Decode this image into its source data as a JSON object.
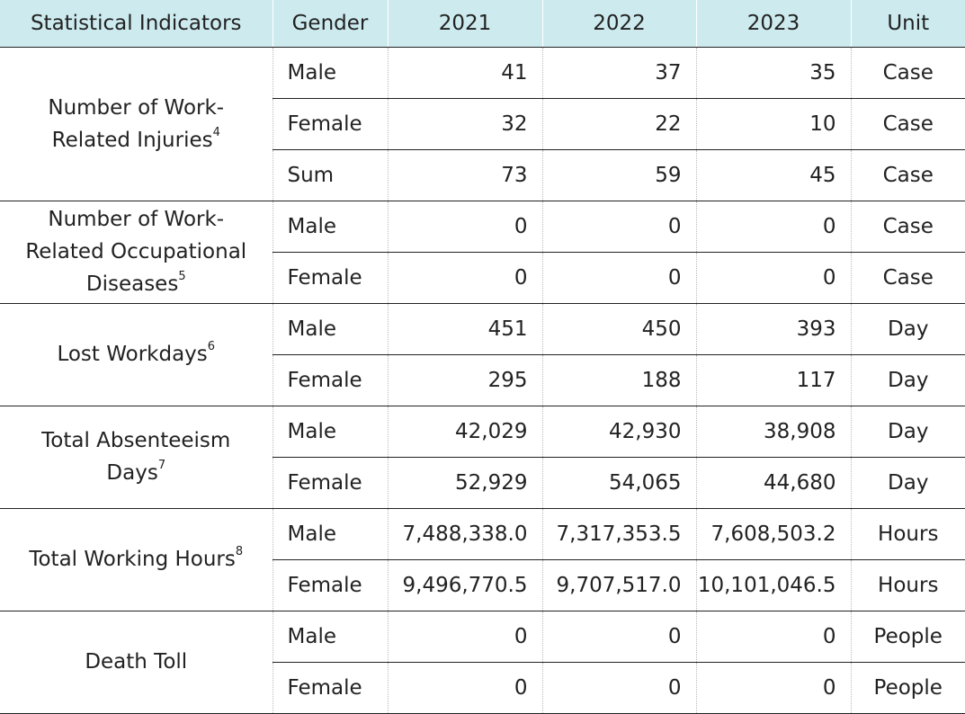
{
  "header": {
    "indicator": "Statistical Indicators",
    "gender": "Gender",
    "y2021": "2021",
    "y2022": "2022",
    "y2023": "2023",
    "unit": "Unit"
  },
  "groups": [
    {
      "label": "Number of Work-Related Injuries",
      "note": "4",
      "rows": [
        {
          "gender": "Male",
          "v2021": "41",
          "v2022": "37",
          "v2023": "35",
          "unit": "Case"
        },
        {
          "gender": "Female",
          "v2021": "32",
          "v2022": "22",
          "v2023": "10",
          "unit": "Case"
        },
        {
          "gender": "Sum",
          "v2021": "73",
          "v2022": "59",
          "v2023": "45",
          "unit": "Case"
        }
      ]
    },
    {
      "label": "Number of Work-Related Occupational Diseases",
      "note": "5",
      "rows": [
        {
          "gender": "Male",
          "v2021": "0",
          "v2022": "0",
          "v2023": "0",
          "unit": "Case"
        },
        {
          "gender": "Female",
          "v2021": "0",
          "v2022": "0",
          "v2023": "0",
          "unit": "Case"
        }
      ]
    },
    {
      "label": "Lost Workdays",
      "note": "6",
      "rows": [
        {
          "gender": "Male",
          "v2021": "451",
          "v2022": "450",
          "v2023": "393",
          "unit": "Day"
        },
        {
          "gender": "Female",
          "v2021": "295",
          "v2022": "188",
          "v2023": "117",
          "unit": "Day"
        }
      ]
    },
    {
      "label": "Total Absenteeism Days",
      "note": "7",
      "rows": [
        {
          "gender": "Male",
          "v2021": "42,029",
          "v2022": "42,930",
          "v2023": "38,908",
          "unit": "Day"
        },
        {
          "gender": "Female",
          "v2021": "52,929",
          "v2022": "54,065",
          "v2023": "44,680",
          "unit": "Day"
        }
      ]
    },
    {
      "label": "Total Working Hours",
      "note": "8",
      "rows": [
        {
          "gender": "Male",
          "v2021": "7,488,338.0",
          "v2022": "7,317,353.5",
          "v2023": "7,608,503.2",
          "unit": "Hours"
        },
        {
          "gender": "Female",
          "v2021": "9,496,770.5",
          "v2022": "9,707,517.0",
          "v2023": "10,101,046.5",
          "unit": "Hours"
        }
      ]
    },
    {
      "label": "Death Toll",
      "note": "",
      "rows": [
        {
          "gender": "Male",
          "v2021": "0",
          "v2022": "0",
          "v2023": "0",
          "unit": "People"
        },
        {
          "gender": "Female",
          "v2021": "0",
          "v2022": "0",
          "v2023": "0",
          "unit": "People"
        }
      ]
    }
  ]
}
